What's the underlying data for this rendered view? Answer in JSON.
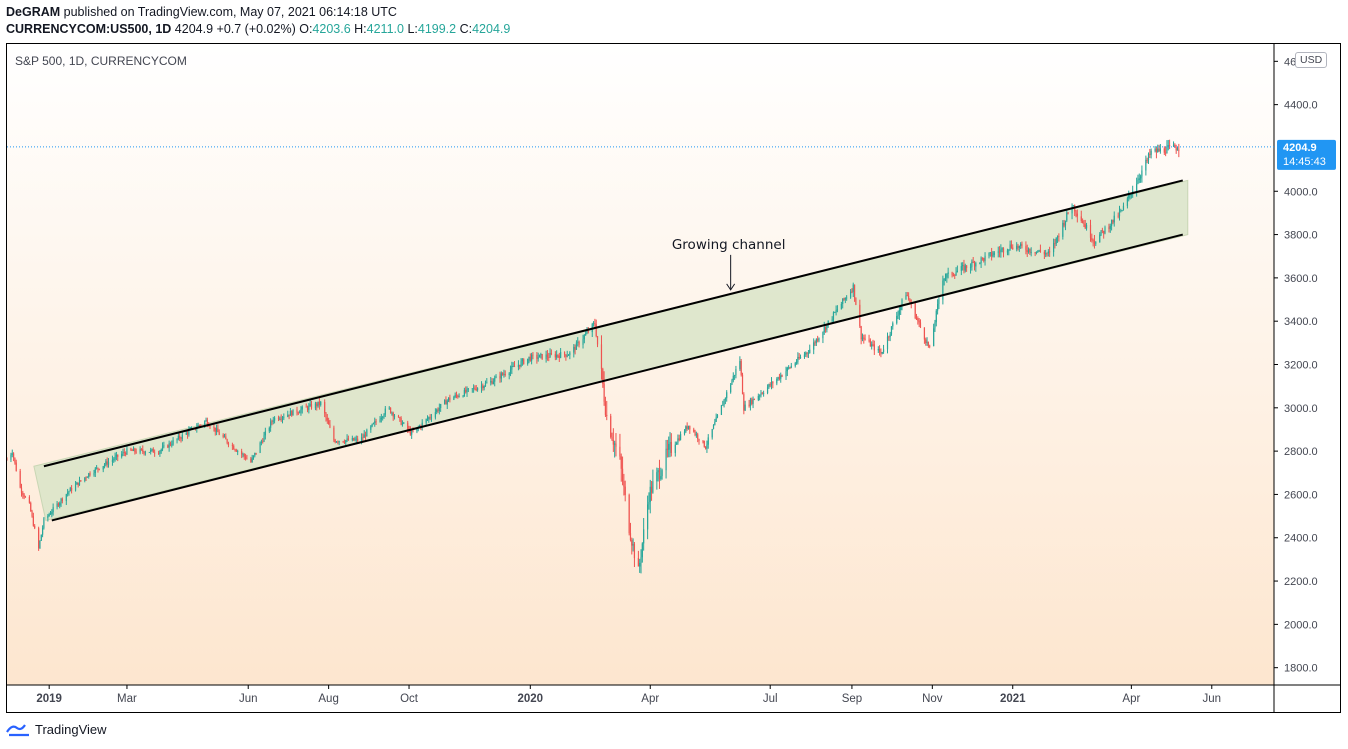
{
  "header": {
    "author": "DeGRAM",
    "published_text": "published on TradingView.com, May 07, 2021 06:14:18 UTC",
    "symbol": "CURRENCYCOM:US500, 1D",
    "last": "4204.9",
    "change": "+0.7 (+0.02%)",
    "o_label": "O:",
    "o_val": "4203.6",
    "h_label": "H:",
    "h_val": "4211.0",
    "l_label": "L:",
    "l_val": "4199.2",
    "c_label": "C:",
    "c_val": "4204.9"
  },
  "chart_caption": "S&P 500, 1D, CURRENCYCOM",
  "currency": "USD",
  "current_price_tag": {
    "price": "4204.9",
    "countdown": "14:45:43"
  },
  "footer": {
    "brand": "TradingView"
  },
  "colors": {
    "up": "#26a69a",
    "down": "#ef5350",
    "price_tag": "#2196f3",
    "channel_fill": "#d9e4c8",
    "bg_top": "#ffffff",
    "bg_bottom": "#fde6cf"
  },
  "chart_data": {
    "type": "candlestick",
    "title": "S&P 500, 1D, CURRENCYCOM",
    "ylim": [
      1720,
      4680
    ],
    "x_range": [
      "2018-11-30",
      "2021-06-30"
    ],
    "y_ticks": [
      "4600.0",
      "4400.0",
      "4000.0",
      "3800.0",
      "3600.0",
      "3400.0",
      "3200.0",
      "3000.0",
      "2800.0",
      "2600.0",
      "2400.0",
      "2200.0",
      "2000.0",
      "1800.0"
    ],
    "x_ticks": [
      {
        "label": "2019",
        "date": "2019-01-01",
        "bold": true
      },
      {
        "label": "Mar",
        "date": "2019-03-01",
        "bold": false
      },
      {
        "label": "Jun",
        "date": "2019-06-01",
        "bold": false
      },
      {
        "label": "Aug",
        "date": "2019-08-01",
        "bold": false
      },
      {
        "label": "Oct",
        "date": "2019-10-01",
        "bold": false
      },
      {
        "label": "2020",
        "date": "2020-01-01",
        "bold": true
      },
      {
        "label": "Apr",
        "date": "2020-04-01",
        "bold": false
      },
      {
        "label": "Jul",
        "date": "2020-07-01",
        "bold": false
      },
      {
        "label": "Sep",
        "date": "2020-09-01",
        "bold": false
      },
      {
        "label": "Nov",
        "date": "2020-11-01",
        "bold": false
      },
      {
        "label": "2021",
        "date": "2021-01-01",
        "bold": true
      },
      {
        "label": "Apr",
        "date": "2021-04-01",
        "bold": false
      },
      {
        "label": "Jun",
        "date": "2021-06-01",
        "bold": false
      }
    ],
    "price_path": [
      [
        "2018-11-30",
        2760
      ],
      [
        "2018-12-04",
        2800
      ],
      [
        "2018-12-10",
        2630
      ],
      [
        "2018-12-17",
        2550
      ],
      [
        "2018-12-24",
        2350
      ],
      [
        "2018-12-28",
        2480
      ],
      [
        "2019-01-15",
        2610
      ],
      [
        "2019-02-01",
        2700
      ],
      [
        "2019-03-01",
        2800
      ],
      [
        "2019-03-25",
        2800
      ],
      [
        "2019-04-30",
        2940
      ],
      [
        "2019-05-15",
        2850
      ],
      [
        "2019-06-03",
        2750
      ],
      [
        "2019-06-20",
        2950
      ],
      [
        "2019-07-26",
        3020
      ],
      [
        "2019-08-05",
        2850
      ],
      [
        "2019-08-25",
        2850
      ],
      [
        "2019-09-15",
        3000
      ],
      [
        "2019-10-03",
        2880
      ],
      [
        "2019-10-31",
        3040
      ],
      [
        "2019-12-02",
        3120
      ],
      [
        "2019-12-31",
        3230
      ],
      [
        "2020-01-31",
        3250
      ],
      [
        "2020-02-19",
        3390
      ],
      [
        "2020-02-28",
        2960
      ],
      [
        "2020-03-09",
        2750
      ],
      [
        "2020-03-16",
        2450
      ],
      [
        "2020-03-23",
        2240
      ],
      [
        "2020-03-31",
        2600
      ],
      [
        "2020-04-15",
        2800
      ],
      [
        "2020-04-30",
        2920
      ],
      [
        "2020-05-13",
        2820
      ],
      [
        "2020-06-08",
        3220
      ],
      [
        "2020-06-11",
        3000
      ],
      [
        "2020-06-30",
        3100
      ],
      [
        "2020-07-31",
        3270
      ],
      [
        "2020-09-02",
        3560
      ],
      [
        "2020-09-08",
        3330
      ],
      [
        "2020-09-23",
        3250
      ],
      [
        "2020-10-12",
        3530
      ],
      [
        "2020-10-30",
        3270
      ],
      [
        "2020-11-09",
        3600
      ],
      [
        "2020-12-31",
        3750
      ],
      [
        "2021-01-29",
        3710
      ],
      [
        "2021-02-15",
        3940
      ],
      [
        "2021-03-04",
        3770
      ],
      [
        "2021-03-25",
        3910
      ],
      [
        "2021-04-16",
        4180
      ],
      [
        "2021-05-07",
        4204.9
      ]
    ],
    "channel": {
      "upper_line": [
        [
          "2018-12-28",
          2730
        ],
        [
          "2021-05-10",
          4050
        ]
      ],
      "lower_line": [
        [
          "2019-01-03",
          2480
        ],
        [
          "2021-05-10",
          3800
        ]
      ]
    },
    "annotation": {
      "text": "Growing channel",
      "date": "2020-06-01",
      "price": 3540
    },
    "current_price": 4204.9
  }
}
